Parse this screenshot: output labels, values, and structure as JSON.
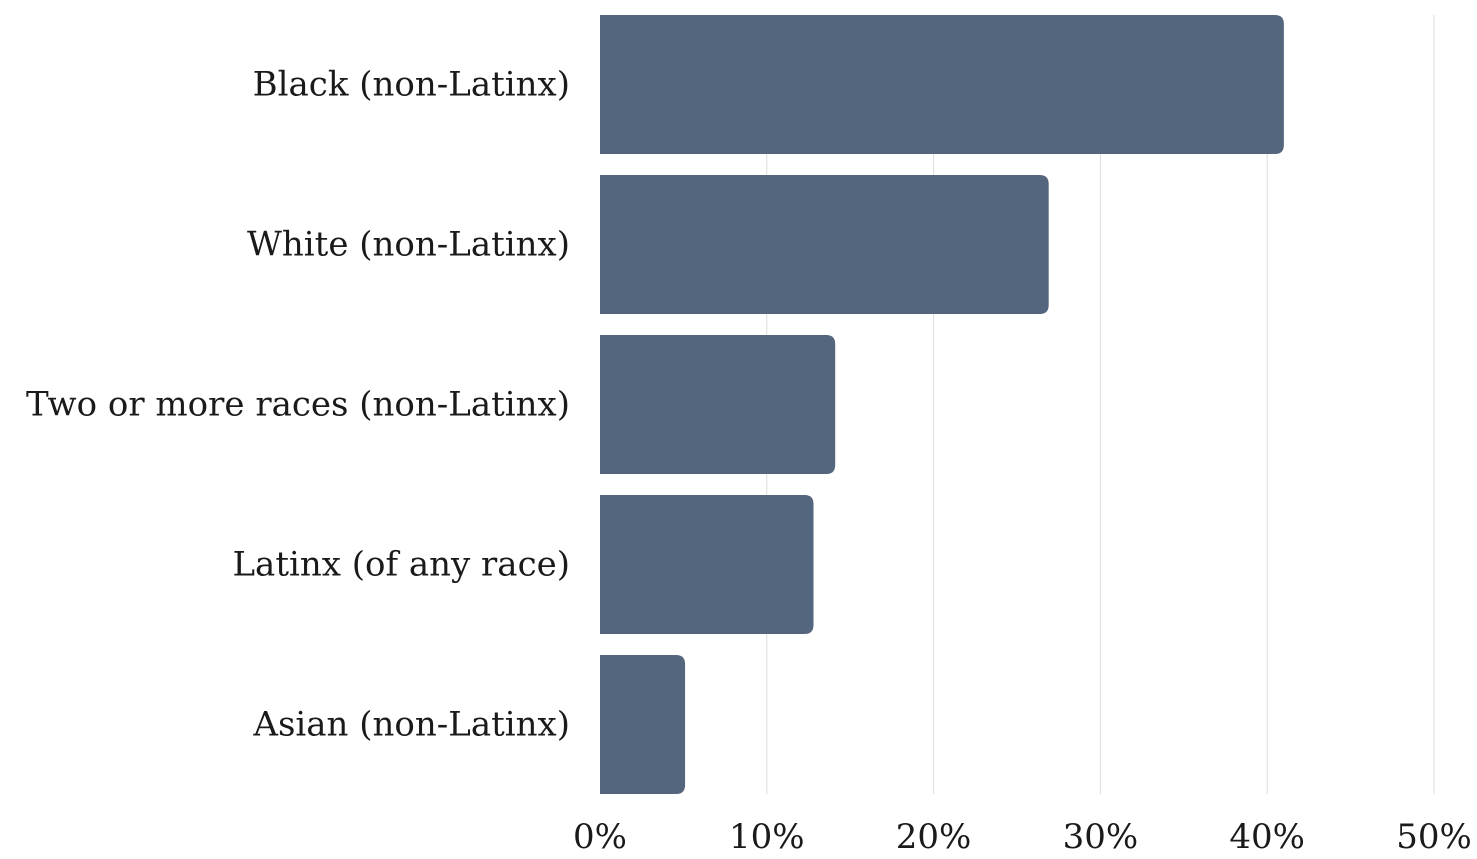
{
  "chart_data": {
    "type": "bar",
    "orientation": "horizontal",
    "categories": [
      "Black (non-Latinx)",
      "White (non-Latinx)",
      "Two or more races (non-Latinx)",
      "Latinx (of any race)",
      "Asian (non-Latinx)"
    ],
    "values": [
      41.0,
      26.9,
      14.1,
      12.8,
      5.1
    ],
    "value_unit": "%",
    "xlim": [
      0,
      50
    ],
    "x_ticks": [
      "0%",
      "10%",
      "20%",
      "30%",
      "40%",
      "50%"
    ],
    "grid": "vertical",
    "legend": "none",
    "bar_color": "#54667d"
  }
}
